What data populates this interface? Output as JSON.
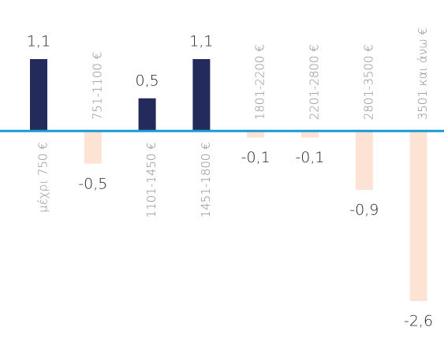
{
  "chart_data": {
    "type": "bar",
    "categories": [
      "μέχρι 750 €",
      "751-1100 €",
      "1101-1450 €",
      "1451-1800 €",
      "1801-2200 €",
      "2201-2800 €",
      "2801-3500 €",
      "3501 και άνω €"
    ],
    "values": [
      1.1,
      -0.5,
      0.5,
      1.1,
      -0.1,
      -0.1,
      -0.9,
      -2.6
    ],
    "value_labels": [
      "1,1",
      "-0,5",
      "0,5",
      "1,1",
      "-0,1",
      "-0,1",
      "-0,9",
      "-2,6"
    ],
    "colors": {
      "positive": "#232a5c",
      "negative": "#fde3d3",
      "axis": "#1a9ad6"
    }
  }
}
